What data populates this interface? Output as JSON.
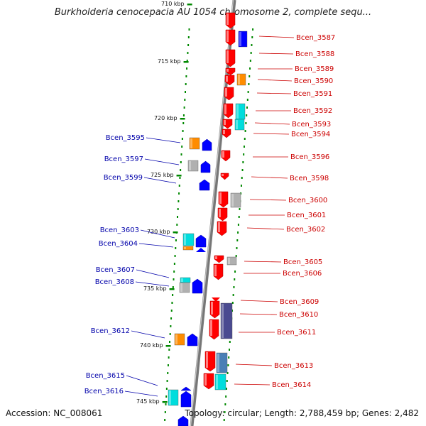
{
  "title": "Burkholderia cenocepacia AU 1054 chromosome 2, complete sequ...",
  "footer": {
    "accession": "Accession: NC_008061",
    "topology": "Topology: circular; Length: 2,788,459 bp; Genes: 2,482"
  },
  "colors": {
    "forward_label": "#cc0000",
    "reverse_label": "#0000aa",
    "forward_gene": "#ff0000",
    "reverse_gene": "#0000ff",
    "orange": "#ff8c00",
    "cyan": "#00dddd",
    "gray": "#b0b0b0",
    "steelblue": "#4a7fb5",
    "navy": "#4a4a90",
    "tick": "#008800",
    "backbone": "#888888"
  },
  "kbp_ticks": [
    {
      "label": "710 kbp",
      "pos": 710
    },
    {
      "label": "715 kbp",
      "pos": 715
    },
    {
      "label": "720 kbp",
      "pos": 720
    },
    {
      "label": "725 kbp",
      "pos": 725
    },
    {
      "label": "730 kbp",
      "pos": 730
    },
    {
      "label": "735 kbp",
      "pos": 735
    },
    {
      "label": "740 kbp",
      "pos": 740
    },
    {
      "label": "745 kbp",
      "pos": 745
    }
  ],
  "forward_labels": [
    "Bcen_3587",
    "Bcen_3588",
    "Bcen_3589",
    "Bcen_3590",
    "Bcen_3591",
    "Bcen_3592",
    "Bcen_3593",
    "Bcen_3594",
    "Bcen_3596",
    "Bcen_3598",
    "Bcen_3600",
    "Bcen_3601",
    "Bcen_3602",
    "Bcen_3605",
    "Bcen_3606",
    "Bcen_3609",
    "Bcen_3610",
    "Bcen_3611",
    "Bcen_3613",
    "Bcen_3614"
  ],
  "reverse_labels": [
    "Bcen_3595",
    "Bcen_3597",
    "Bcen_3599",
    "Bcen_3603",
    "Bcen_3604",
    "Bcen_3607",
    "Bcen_3608",
    "Bcen_3612",
    "Bcen_3615",
    "Bcen_3616"
  ]
}
